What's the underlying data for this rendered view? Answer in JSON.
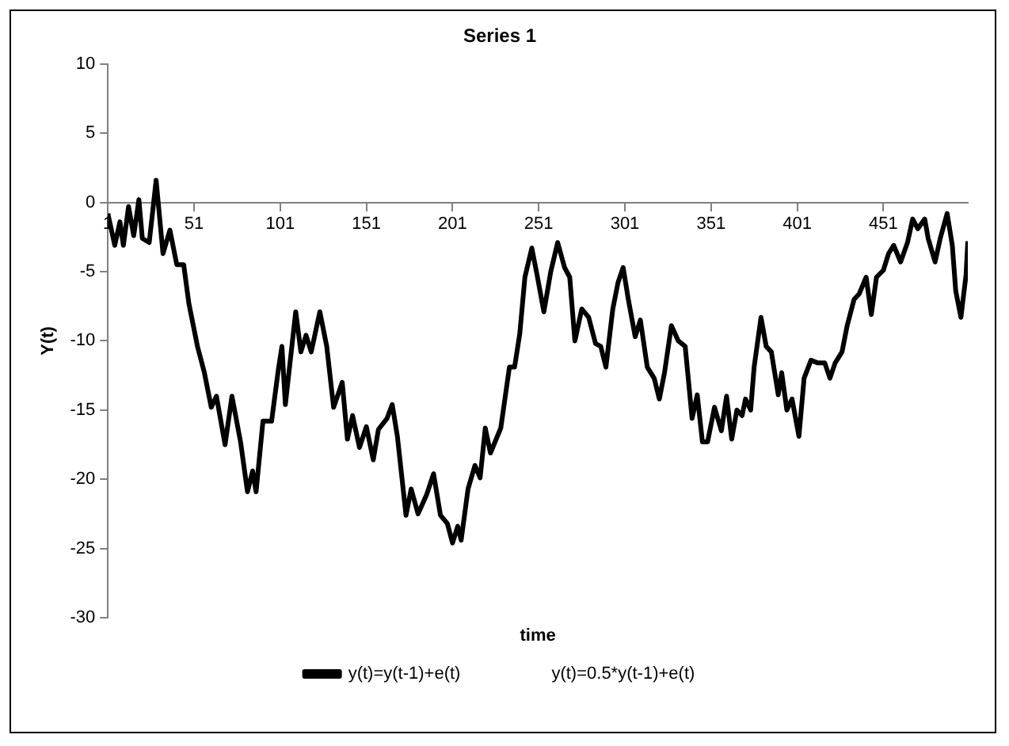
{
  "chart_data": {
    "type": "line",
    "title": "Series 1",
    "xlabel": "time",
    "ylabel": "Y(t)",
    "xlim": [
      1,
      500
    ],
    "xticks": [
      1,
      51,
      101,
      151,
      201,
      251,
      301,
      351,
      401,
      451
    ],
    "ylim": [
      -30,
      10
    ],
    "yticks": [
      -30,
      -25,
      -20,
      -15,
      -10,
      -5,
      0,
      5,
      10
    ],
    "grid": false,
    "legend": "bottom",
    "marker": "none",
    "line_style": "solid",
    "series": [
      {
        "name": "y(t)=y(t-1)+e(t)",
        "color": "#000000",
        "x": [
          1,
          5,
          8,
          10,
          13,
          16,
          19,
          21,
          25,
          29,
          33,
          37,
          41,
          45,
          48,
          53,
          57,
          61,
          64,
          69,
          73,
          78,
          82,
          85,
          87,
          91,
          96,
          100,
          102,
          104,
          110,
          113,
          116,
          119,
          124,
          128,
          132,
          137,
          140,
          143,
          147,
          151,
          155,
          158,
          163,
          166,
          169,
          174,
          177,
          181,
          186,
          190,
          194,
          198,
          201,
          204,
          206,
          210,
          214,
          217,
          220,
          223,
          229,
          234,
          237,
          240,
          243,
          247,
          250,
          254,
          258,
          262,
          266,
          269,
          272,
          276,
          280,
          284,
          287,
          290,
          294,
          297,
          300,
          303,
          307,
          310,
          314,
          318,
          321,
          324,
          328,
          332,
          336,
          340,
          343,
          346,
          349,
          353,
          357,
          360,
          363,
          366,
          369,
          371,
          374,
          376,
          380,
          383,
          386,
          390,
          392,
          395,
          398,
          402,
          405,
          409,
          413,
          417,
          420,
          423,
          427,
          430,
          434,
          437,
          441,
          444,
          447,
          451,
          454,
          457,
          461,
          465,
          468,
          471,
          475,
          477,
          481,
          484,
          488,
          491,
          493,
          496,
          499,
          500
        ],
        "values": [
          -0.8,
          -3.1,
          -1.4,
          -3.1,
          -0.3,
          -2.4,
          0.2,
          -2.6,
          -2.9,
          1.6,
          -3.7,
          -2.0,
          -4.5,
          -4.5,
          -7.3,
          -10.4,
          -12.3,
          -14.8,
          -14.0,
          -17.5,
          -14.0,
          -17.3,
          -20.9,
          -19.4,
          -20.9,
          -15.8,
          -15.8,
          -12.0,
          -10.4,
          -14.6,
          -7.9,
          -10.8,
          -9.6,
          -10.8,
          -7.9,
          -10.4,
          -14.8,
          -13.0,
          -17.1,
          -15.4,
          -17.7,
          -16.2,
          -18.6,
          -16.4,
          -15.6,
          -14.6,
          -16.9,
          -22.6,
          -20.7,
          -22.5,
          -21.1,
          -19.6,
          -22.6,
          -23.2,
          -24.6,
          -23.4,
          -24.4,
          -20.7,
          -19.0,
          -19.9,
          -16.3,
          -18.1,
          -16.3,
          -11.9,
          -11.9,
          -9.5,
          -5.4,
          -3.3,
          -5.2,
          -7.9,
          -5.0,
          -2.9,
          -4.7,
          -5.4,
          -10.0,
          -7.7,
          -8.3,
          -10.2,
          -10.4,
          -11.9,
          -7.7,
          -5.8,
          -4.7,
          -7.0,
          -9.7,
          -8.5,
          -11.9,
          -12.7,
          -14.2,
          -12.3,
          -8.9,
          -10.0,
          -10.4,
          -15.6,
          -13.9,
          -17.3,
          -17.3,
          -14.8,
          -16.5,
          -14.0,
          -17.1,
          -15.0,
          -15.4,
          -14.2,
          -15.0,
          -11.9,
          -8.3,
          -10.4,
          -10.8,
          -13.9,
          -12.3,
          -15.0,
          -14.2,
          -16.9,
          -12.7,
          -11.4,
          -11.6,
          -11.6,
          -12.7,
          -11.6,
          -10.8,
          -8.9,
          -7.0,
          -6.6,
          -5.4,
          -8.1,
          -5.4,
          -4.9,
          -3.7,
          -3.1,
          -4.3,
          -2.9,
          -1.2,
          -1.9,
          -1.2,
          -2.6,
          -4.3,
          -2.6,
          -0.8,
          -3.1,
          -6.4,
          -8.3,
          -5.2,
          -2.8
        ]
      },
      {
        "name": "y(t)=0.5*y(t-1)+e(t)"
      }
    ]
  }
}
